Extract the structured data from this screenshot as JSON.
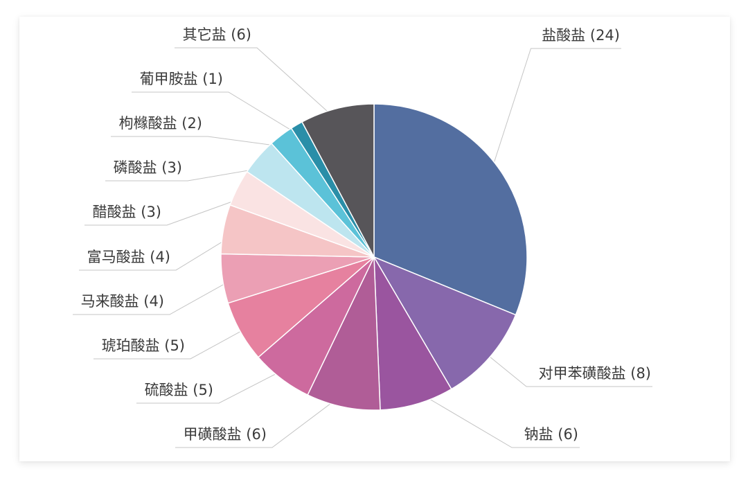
{
  "chart_data": {
    "type": "pie",
    "slices": [
      {
        "label": "盐酸盐 (24)",
        "value": 24,
        "color": "#536ea0"
      },
      {
        "label": "对甲苯磺酸盐 (8)",
        "value": 8,
        "color": "#8768ac"
      },
      {
        "label": "钠盐 (6)",
        "value": 6,
        "color": "#9a559f"
      },
      {
        "label": "甲磺酸盐 (6)",
        "value": 6,
        "color": "#b05d97"
      },
      {
        "label": "硫酸盐 (5)",
        "value": 5,
        "color": "#cd6a9e"
      },
      {
        "label": "琥珀酸盐 (5)",
        "value": 5,
        "color": "#e6819f"
      },
      {
        "label": "马来酸盐 (4)",
        "value": 4,
        "color": "#eb9fb4"
      },
      {
        "label": "富马酸盐 (4)",
        "value": 4,
        "color": "#f5c5c6"
      },
      {
        "label": "醋酸盐 (3)",
        "value": 3,
        "color": "#fae3e3"
      },
      {
        "label": "磷酸盐 (3)",
        "value": 3,
        "color": "#bde5ef"
      },
      {
        "label": "枸橼酸盐 (2)",
        "value": 2,
        "color": "#5bc2d8"
      },
      {
        "label": "葡甲胺盐 (1)",
        "value": 1,
        "color": "#2a8ea8"
      },
      {
        "label": "其它盐 (6)",
        "value": 6,
        "color": "#575559"
      }
    ],
    "start": "top",
    "direction": "clockwise",
    "legend": "none"
  }
}
